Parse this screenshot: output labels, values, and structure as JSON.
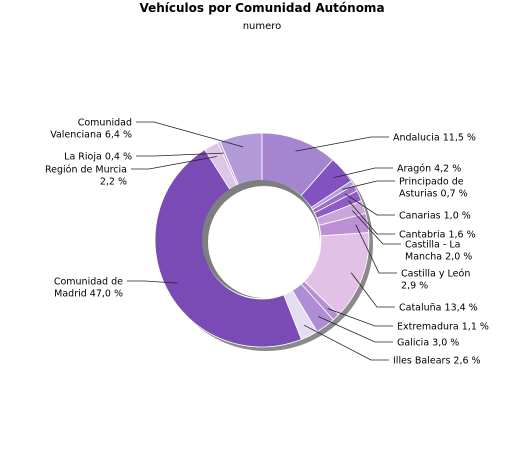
{
  "chart_data": {
    "type": "pie",
    "title": "Vehículos por Comunidad Autónoma",
    "subtitle": "numero",
    "slices": [
      {
        "name": "Andalucía",
        "value": 11.5,
        "label": [
          "Andalucia 11,5 %"
        ],
        "color": "#a585cf"
      },
      {
        "name": "Aragón",
        "value": 4.2,
        "label": [
          "Aragón 4,2 %"
        ],
        "color": "#8252c1"
      },
      {
        "name": "Principado de Asturias",
        "value": 0.7,
        "label": [
          "Principado de",
          "Asturias 0,7 %"
        ],
        "color": "#b39ad6"
      },
      {
        "name": "Canarias",
        "value": 1.0,
        "label": [
          "Canarias 1,0 %"
        ],
        "color": "#9b6ec7"
      },
      {
        "name": "Cantabria",
        "value": 1.6,
        "label": [
          "Cantabria 1,6 %"
        ],
        "color": "#8e5cc2"
      },
      {
        "name": "Castilla - La Mancha",
        "value": 2.0,
        "label": [
          "Castilla - La",
          "Mancha 2,0 %"
        ],
        "color": "#c9a5dc"
      },
      {
        "name": "Castilla y León",
        "value": 2.9,
        "label": [
          "Castilla y León",
          "2,9 %"
        ],
        "color": "#bd8fd3"
      },
      {
        "name": "Cataluña",
        "value": 13.4,
        "label": [
          "Cataluña 13,4 %"
        ],
        "color": "#e2c1e6"
      },
      {
        "name": "Extremadura",
        "value": 1.1,
        "label": [
          "Extremadura 1,1 %"
        ],
        "color": "#b690d1"
      },
      {
        "name": "Galicia",
        "value": 3.0,
        "label": [
          "Galicia 3,0 %"
        ],
        "color": "#ad8ed4"
      },
      {
        "name": "Illes Balears",
        "value": 2.6,
        "label": [
          "Illes Balears 2,6 %"
        ],
        "color": "#e6dcf1"
      },
      {
        "name": "Comunidad de Madrid",
        "value": 47.0,
        "label": [
          "Comunidad de",
          "Madrid 47,0 %"
        ],
        "color": "#7a4bb5"
      },
      {
        "name": "Región de Murcia",
        "value": 2.2,
        "label": [
          "Región de Murcia",
          "2,2 %"
        ],
        "color": "#ddc6ea"
      },
      {
        "name": "La Rioja",
        "value": 0.4,
        "label": [
          "La Rioja 0,4 %"
        ],
        "color": "#c8b3df"
      },
      {
        "name": "Comunidad Valenciana",
        "value": 6.4,
        "label": [
          "Comunidad",
          "Valenciana 6,4 %"
        ],
        "color": "#b39ad8"
      }
    ],
    "legend": "none",
    "style": "donut"
  }
}
